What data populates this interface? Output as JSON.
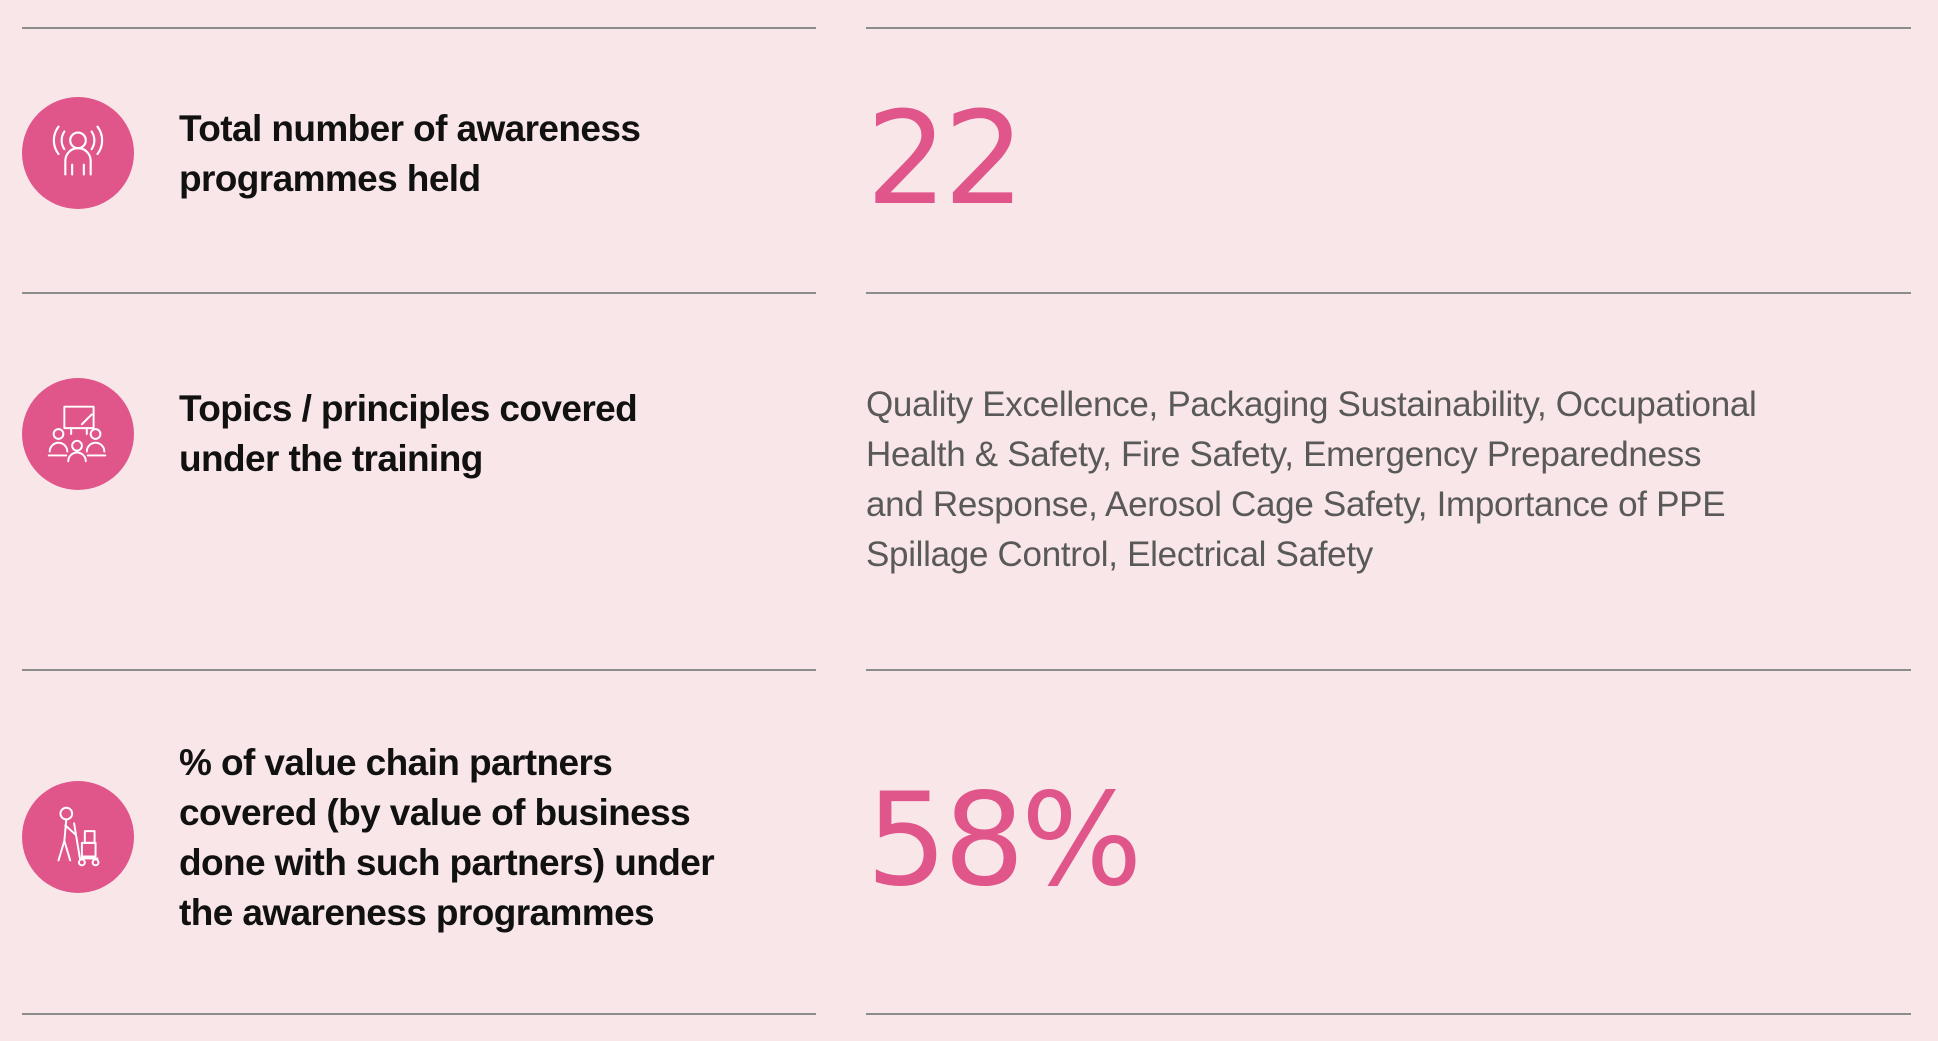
{
  "theme": {
    "background": "#f9e6e8",
    "accent": "#e0558a",
    "divider": "#8c8c8c",
    "label_color": "#111111",
    "text_color": "#595959"
  },
  "rows": [
    {
      "icon": "broadcast-person-icon",
      "label": "Total number of awareness programmes held",
      "value": "22"
    },
    {
      "icon": "training-session-icon",
      "label": "Topics / principles covered under the training",
      "value": "Quality Excellence, Packaging Sustainability, Occupational Health & Safety, Fire Safety, Emergency Preparedness and Response, Aerosol Cage Safety, Importance of PPE Spillage Control, Electrical Safety"
    },
    {
      "icon": "delivery-worker-icon",
      "label": "% of value chain partners covered (by value of business done with such partners) under the awareness programmes",
      "value": "58%"
    }
  ]
}
